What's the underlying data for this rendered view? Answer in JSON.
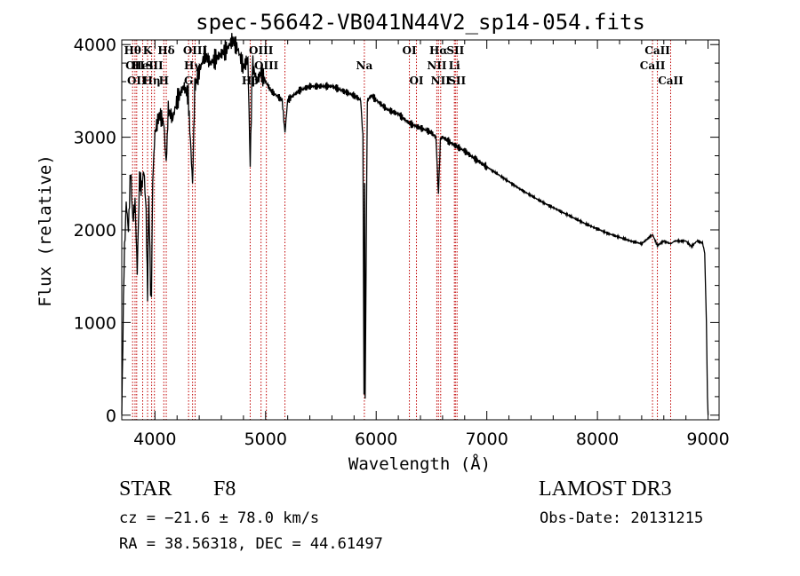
{
  "chart_data": {
    "type": "line",
    "title": "spec-56642-VB041N44V2_sp14-054.fits",
    "xlabel": "Wavelength (Å)",
    "ylabel": "Flux (relative)",
    "xlim": [
      3700,
      9100
    ],
    "ylim": [
      -50,
      4050
    ],
    "xticks": [
      4000,
      5000,
      6000,
      7000,
      8000,
      9000
    ],
    "yticks": [
      0,
      1000,
      2000,
      3000,
      4000
    ],
    "series": [
      {
        "name": "flux",
        "x": [
          3700,
          3720,
          3740,
          3760,
          3780,
          3800,
          3820,
          3840,
          3860,
          3880,
          3900,
          3920,
          3933,
          3945,
          3960,
          3968,
          3980,
          4000,
          4040,
          4080,
          4102,
          4120,
          4160,
          4200,
          4260,
          4300,
          4340,
          4360,
          4400,
          4450,
          4500,
          4550,
          4600,
          4650,
          4700,
          4750,
          4800,
          4840,
          4861,
          4880,
          4920,
          4960,
          5000,
          5050,
          5100,
          5150,
          5175,
          5200,
          5300,
          5400,
          5500,
          5600,
          5700,
          5800,
          5860,
          5880,
          5890,
          5896,
          5900,
          5920,
          5960,
          6000,
          6100,
          6200,
          6300,
          6400,
          6500,
          6540,
          6563,
          6580,
          6600,
          6700,
          6800,
          6900,
          7000,
          7100,
          7200,
          7300,
          7400,
          7500,
          7600,
          7700,
          7800,
          7900,
          8000,
          8100,
          8200,
          8300,
          8400,
          8498,
          8542,
          8600,
          8662,
          8700,
          8800,
          8850,
          8900,
          8950,
          8970,
          8985,
          8995,
          9000
        ],
        "y": [
          0,
          1600,
          2300,
          2000,
          2650,
          2100,
          2300,
          1550,
          2550,
          2450,
          2650,
          2200,
          1250,
          2350,
          1400,
          1300,
          2550,
          3050,
          3250,
          3150,
          2700,
          3300,
          3200,
          3400,
          3550,
          3450,
          2500,
          3550,
          3700,
          3900,
          3800,
          3850,
          3900,
          3950,
          4050,
          3950,
          3750,
          3850,
          2700,
          3800,
          3600,
          3700,
          3600,
          3500,
          3450,
          3400,
          3050,
          3400,
          3500,
          3550,
          3550,
          3550,
          3500,
          3450,
          3400,
          3000,
          180,
          2500,
          150,
          3400,
          3450,
          3400,
          3300,
          3250,
          3150,
          3100,
          3050,
          3000,
          2380,
          2980,
          3000,
          2920,
          2850,
          2760,
          2680,
          2600,
          2520,
          2440,
          2370,
          2300,
          2240,
          2180,
          2120,
          2060,
          2010,
          1960,
          1920,
          1880,
          1850,
          1950,
          1830,
          1880,
          1850,
          1880,
          1880,
          1820,
          1880,
          1860,
          1750,
          1000,
          200,
          0
        ]
      }
    ],
    "lines": [
      {
        "wl": 3798,
        "label": "Hθ",
        "row": 0
      },
      {
        "wl": 3820,
        "label": "OII",
        "row": 1
      },
      {
        "wl": 3835,
        "label": "OII",
        "row": 2
      },
      {
        "wl": 3889,
        "label": "HeI",
        "row": 1
      },
      {
        "wl": 3933,
        "label": "K",
        "row": 0
      },
      {
        "wl": 3970,
        "label": "Hη",
        "row": 2
      },
      {
        "wl": 3995,
        "label": "SII",
        "row": 1
      },
      {
        "wl": 4080,
        "label": "H",
        "row": 2
      },
      {
        "wl": 4102,
        "label": "Hδ",
        "row": 0
      },
      {
        "wl": 4304,
        "label": "G",
        "row": 2
      },
      {
        "wl": 4340,
        "label": "Hγ",
        "row": 1
      },
      {
        "wl": 4363,
        "label": "OIII",
        "row": 0
      },
      {
        "wl": 4861,
        "label": "Hβ",
        "row": 2
      },
      {
        "wl": 4959,
        "label": "OIII",
        "row": 0
      },
      {
        "wl": 5007,
        "label": "OIII",
        "row": 1
      },
      {
        "wl": 5175,
        "label": "",
        "row": 0
      },
      {
        "wl": 5893,
        "label": "Na",
        "row": 1
      },
      {
        "wl": 6300,
        "label": "OI",
        "row": 0
      },
      {
        "wl": 6364,
        "label": "OI",
        "row": 2
      },
      {
        "wl": 6548,
        "label": "NII",
        "row": 1
      },
      {
        "wl": 6563,
        "label": "Hα",
        "row": 0
      },
      {
        "wl": 6583,
        "label": "NII",
        "row": 2
      },
      {
        "wl": 6707,
        "label": "Li",
        "row": 1
      },
      {
        "wl": 6716,
        "label": "SII",
        "row": 0
      },
      {
        "wl": 6731,
        "label": "SII",
        "row": 2
      },
      {
        "wl": 8498,
        "label": "CaII",
        "row": 1
      },
      {
        "wl": 8542,
        "label": "CaII",
        "row": 0
      },
      {
        "wl": 8662,
        "label": "CaII",
        "row": 2
      }
    ]
  },
  "info": {
    "class_label": "STAR",
    "subclass": "F8",
    "survey": "LAMOST DR3",
    "cz": "cz = −21.6 ± 78.0 km/s",
    "obs_date": "Obs-Date: 20131215",
    "coords": "RA =  38.56318, DEC =  44.61497"
  },
  "colors": {
    "line": "#c00000",
    "spectrum": "#000000",
    "axis": "#000000"
  }
}
